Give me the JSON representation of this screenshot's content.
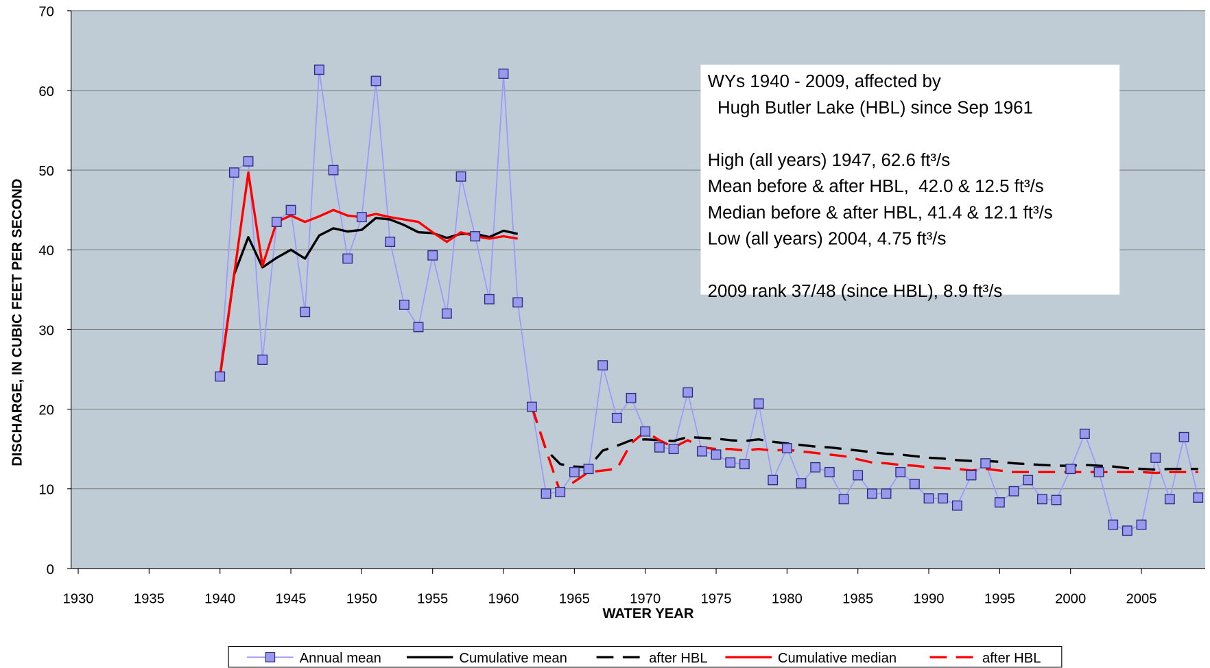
{
  "chart_data": {
    "type": "line",
    "xlabel": "WATER YEAR",
    "ylabel": "DISCHARGE, IN CUBIC FEET PER SECOND",
    "xlim": [
      1929.5,
      2009.5
    ],
    "xticks": [
      1930,
      1935,
      1940,
      1945,
      1950,
      1955,
      1960,
      1965,
      1970,
      1975,
      1980,
      1985,
      1990,
      1995,
      2000,
      2005
    ],
    "ylim": [
      0,
      70
    ],
    "yticks": [
      0,
      10,
      20,
      30,
      40,
      50,
      60,
      70
    ],
    "grid": true,
    "legend": "bottom",
    "annotation": [
      [
        "WYs 1940 - 2009, affected by",
        "  Hugh Butler Lake (HBL) since Sep 1961"
      ],
      [
        "High (all years) 1947, 62.6 ft³/s",
        "Mean before & after HBL,  42.0 & 12.5 ft³/s",
        "Median before & after HBL, 41.4 & 12.1 ft³/s",
        "Low (all years) 2004, 4.75 ft³/s"
      ],
      [
        "2009 rank 37/48 (since HBL), 8.9 ft³/s"
      ]
    ],
    "series": [
      {
        "name": "Annual mean",
        "color": "#9999ff",
        "marker": "square",
        "dash": "none",
        "x": [
          1940,
          1941,
          1942,
          1943,
          1944,
          1945,
          1946,
          1947,
          1948,
          1949,
          1950,
          1951,
          1952,
          1953,
          1954,
          1955,
          1956,
          1957,
          1958,
          1959,
          1960,
          1961,
          1962,
          1963,
          1964,
          1965,
          1966,
          1967,
          1968,
          1969,
          1970,
          1971,
          1972,
          1973,
          1974,
          1975,
          1976,
          1977,
          1978,
          1979,
          1980,
          1981,
          1982,
          1983,
          1984,
          1985,
          1986,
          1987,
          1988,
          1989,
          1990,
          1991,
          1992,
          1993,
          1994,
          1995,
          1996,
          1997,
          1998,
          1999,
          2000,
          2001,
          2002,
          2003,
          2004,
          2005,
          2006,
          2007,
          2008,
          2009
        ],
        "values": [
          24.1,
          49.7,
          51.1,
          26.2,
          43.5,
          45,
          32.2,
          62.6,
          50,
          38.9,
          44.1,
          61.2,
          41,
          33.1,
          30.3,
          39.3,
          32,
          49.2,
          41.7,
          33.8,
          62.1,
          33.4,
          20.3,
          9.4,
          9.6,
          12.1,
          12.5,
          25.5,
          18.9,
          21.4,
          17.2,
          15.2,
          15,
          22.1,
          14.7,
          14.3,
          13.3,
          13.1,
          20.7,
          11.1,
          15.1,
          10.7,
          12.7,
          12.1,
          8.7,
          11.7,
          9.4,
          9.4,
          12.1,
          10.6,
          8.8,
          8.8,
          7.9,
          11.7,
          13.2,
          8.3,
          9.7,
          11.1,
          8.7,
          8.6,
          12.5,
          16.9,
          12.1,
          5.5,
          4.75,
          5.5,
          13.9,
          8.7,
          16.5,
          8.9
        ]
      },
      {
        "name": "Cumulative mean",
        "color": "#000000",
        "dash": "none",
        "x": [
          1940,
          1941,
          1942,
          1943,
          1944,
          1945,
          1946,
          1947,
          1948,
          1949,
          1950,
          1951,
          1952,
          1953,
          1954,
          1955,
          1956,
          1957,
          1958,
          1959,
          1960,
          1961
        ],
        "values": [
          24.1,
          36.9,
          41.6,
          37.8,
          39,
          40,
          38.9,
          41.8,
          42.7,
          42.3,
          42.5,
          44,
          43.8,
          43.1,
          42.2,
          42.1,
          41.5,
          42,
          42,
          41.6,
          42.4,
          42.0
        ]
      },
      {
        "name": "after HBL",
        "color": "#000000",
        "dash": "dashed",
        "x": [
          1962,
          1963,
          1964,
          1965,
          1966,
          1967,
          1968,
          1969,
          1970,
          1971,
          1972,
          1973,
          1974,
          1975,
          1976,
          1977,
          1978,
          1979,
          1980,
          1981,
          1982,
          1983,
          1984,
          1985,
          1986,
          1987,
          1988,
          1989,
          1990,
          1991,
          1992,
          1993,
          1994,
          1995,
          1996,
          1997,
          1998,
          1999,
          2000,
          2001,
          2002,
          2003,
          2004,
          2005,
          2006,
          2007,
          2008,
          2009
        ],
        "values": [
          20.3,
          14.9,
          13.1,
          12.8,
          12.7,
          14.8,
          15.4,
          16.1,
          16.2,
          16.1,
          16.0,
          16.5,
          16.4,
          16.3,
          16.1,
          16.0,
          16.2,
          15.9,
          15.7,
          15.5,
          15.3,
          15.2,
          15.0,
          14.8,
          14.6,
          14.4,
          14.3,
          14.1,
          13.9,
          13.8,
          13.6,
          13.5,
          13.5,
          13.4,
          13.2,
          13.1,
          13.0,
          12.9,
          12.9,
          13.0,
          12.9,
          12.8,
          12.6,
          12.5,
          12.4,
          12.5,
          12.5,
          12.5
        ]
      },
      {
        "name": "Cumulative median",
        "color": "#ff0000",
        "dash": "none",
        "x": [
          1940,
          1941,
          1942,
          1943,
          1944,
          1945,
          1946,
          1947,
          1948,
          1949,
          1950,
          1951,
          1952,
          1953,
          1954,
          1955,
          1956,
          1957,
          1958,
          1959,
          1960,
          1961
        ],
        "values": [
          24.1,
          36.9,
          49.7,
          38,
          43.5,
          44.3,
          43.5,
          44.2,
          45,
          44.3,
          44.1,
          44.5,
          44.1,
          43.8,
          43.5,
          42.2,
          41,
          42.2,
          41.7,
          41.4,
          41.7,
          41.4
        ]
      },
      {
        "name": "after HBL",
        "color": "#ff0000",
        "dash": "dashed",
        "x": [
          1962,
          1963,
          1964,
          1965,
          1966,
          1967,
          1968,
          1969,
          1970,
          1971,
          1972,
          1973,
          1974,
          1975,
          1976,
          1977,
          1978,
          1979,
          1980,
          1981,
          1982,
          1983,
          1984,
          1985,
          1986,
          1987,
          1988,
          1989,
          1990,
          1991,
          1992,
          1993,
          1994,
          1995,
          1996,
          1997,
          1998,
          1999,
          2000,
          2001,
          2002,
          2003,
          2004,
          2005,
          2006,
          2007,
          2008,
          2009
        ],
        "values": [
          20.3,
          14.9,
          9.6,
          10.9,
          12.1,
          12.3,
          12.5,
          15.7,
          17.2,
          16.1,
          15.2,
          16.1,
          15.2,
          15.0,
          15.0,
          14.8,
          15.0,
          14.8,
          14.9,
          14.7,
          14.5,
          14.3,
          14.1,
          13.7,
          13.3,
          13.2,
          13.0,
          12.9,
          12.7,
          12.6,
          12.5,
          12.3,
          12.5,
          12.3,
          12.1,
          12.1,
          12.1,
          12.1,
          12.1,
          12.1,
          12.1,
          12.1,
          12.1,
          12.1,
          12.0,
          12.1,
          12.1,
          12.1
        ]
      }
    ]
  }
}
